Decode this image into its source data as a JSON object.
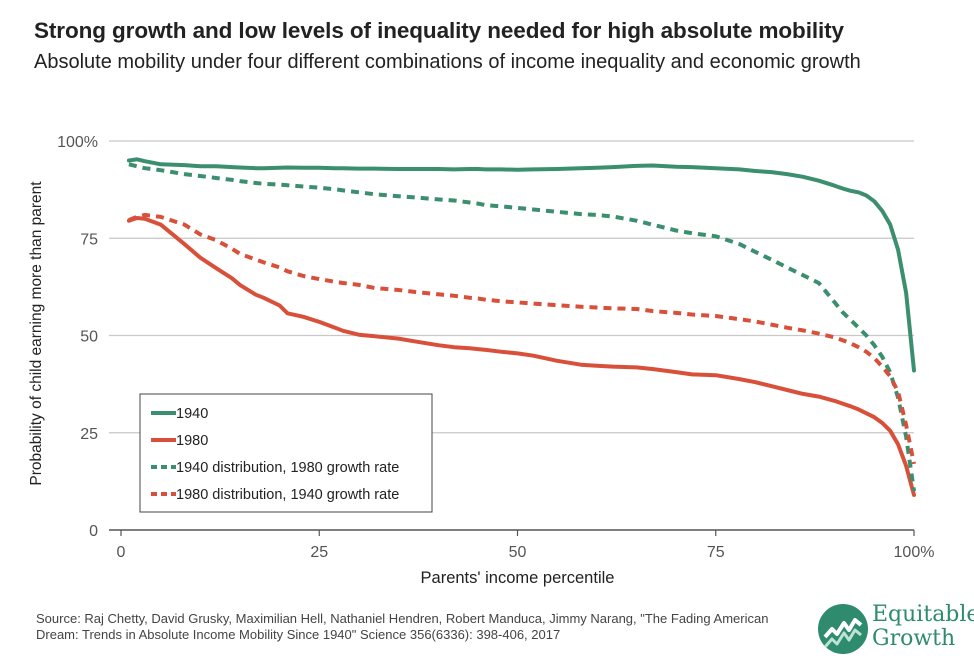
{
  "header": {
    "title": "Strong growth and low levels of inequality needed for high absolute mobility",
    "subtitle": "Absolute mobility under four different combinations of income inequality and economic growth"
  },
  "footer": {
    "source": "Source: Raj Chetty, David Grusky, Maximilian Hell, Nathaniel Hendren, Robert Manduca, Jimmy Narang, \"The Fading American Dream: Trends in Absolute Income Mobility Since 1940\" Science 356(6336): 398-406, 2017"
  },
  "logo": {
    "line1": "Equitable",
    "line2": "Growth"
  },
  "colors": {
    "green": "#3b8f6e",
    "red": "#d9503a",
    "grid": "#c8c8c8",
    "axis": "#555555"
  },
  "chart_data": {
    "type": "line",
    "title": "Strong growth and low levels of inequality needed for high absolute mobility",
    "subtitle": "Absolute mobility under four different combinations of income inequality and economic growth",
    "xlabel": "Parents' income percentile",
    "ylabel": "Probability of child earning more than parent",
    "xlim": [
      0,
      100
    ],
    "ylim": [
      0,
      100
    ],
    "x_ticks": [
      {
        "value": 0,
        "label": "0"
      },
      {
        "value": 25,
        "label": "25"
      },
      {
        "value": 50,
        "label": "50"
      },
      {
        "value": 75,
        "label": "75"
      },
      {
        "value": 100,
        "label": "100%"
      }
    ],
    "y_ticks": [
      {
        "value": 0,
        "label": "0"
      },
      {
        "value": 25,
        "label": "25"
      },
      {
        "value": 50,
        "label": "50"
      },
      {
        "value": 75,
        "label": "75"
      },
      {
        "value": 100,
        "label": "100%"
      }
    ],
    "grid": "horizontal",
    "legend_position": "bottom-left",
    "x": [
      1,
      2,
      3,
      5,
      8,
      10,
      12,
      14,
      15,
      17,
      18,
      20,
      21,
      23,
      25,
      27,
      28,
      30,
      32,
      35,
      37,
      40,
      42,
      44,
      45,
      46,
      48,
      50,
      52,
      55,
      58,
      60,
      62,
      65,
      67,
      70,
      72,
      75,
      78,
      80,
      82,
      84,
      86,
      88,
      90,
      91,
      92,
      93,
      94,
      95,
      96,
      97,
      98,
      99,
      100
    ],
    "series": [
      {
        "name": "1940",
        "style": "solid",
        "color": "#3b8f6e",
        "values": [
          95,
          95.3,
          94.8,
          94,
          93.8,
          93.5,
          93.5,
          93.3,
          93.2,
          93,
          93,
          93.1,
          93.2,
          93.1,
          93.1,
          93,
          93,
          92.9,
          92.9,
          92.8,
          92.8,
          92.8,
          92.7,
          92.8,
          92.8,
          92.7,
          92.7,
          92.6,
          92.7,
          92.8,
          93,
          93.1,
          93.3,
          93.6,
          93.7,
          93.4,
          93.3,
          93,
          92.7,
          92.3,
          92,
          91.5,
          90.8,
          89.8,
          88.5,
          87.8,
          87.2,
          86.8,
          86,
          84.5,
          82,
          78.5,
          72,
          61,
          41
        ]
      },
      {
        "name": "1980",
        "style": "solid",
        "color": "#d9503a",
        "values": [
          79.5,
          80.2,
          80,
          78.5,
          73.5,
          70,
          67.3,
          64.7,
          63,
          60.5,
          59.7,
          57.7,
          55.7,
          54.8,
          53.5,
          52,
          51.2,
          50.2,
          49.8,
          49.2,
          48.5,
          47.5,
          47,
          46.7,
          46.5,
          46.3,
          45.8,
          45.4,
          44.8,
          43.5,
          42.5,
          42.2,
          42,
          41.8,
          41.4,
          40.6,
          40,
          39.8,
          38.8,
          38,
          37,
          36,
          35,
          34.3,
          33.2,
          32.5,
          31.8,
          31,
          30,
          29,
          27.5,
          25.5,
          22,
          16.5,
          9
        ]
      },
      {
        "name": "1940 distribution, 1980 growth rate",
        "style": "dashed",
        "color": "#3b8f6e",
        "values": [
          94,
          93.5,
          93,
          92.5,
          91.5,
          91,
          90.5,
          90,
          89.7,
          89.2,
          89,
          88.8,
          88.6,
          88.3,
          88,
          87.6,
          87.3,
          86.8,
          86.3,
          85.8,
          85.5,
          85,
          84.7,
          84.2,
          83.9,
          83.5,
          83.2,
          82.8,
          82.4,
          81.8,
          81.2,
          81,
          80.6,
          79.5,
          78.5,
          77,
          76.3,
          75.5,
          73.5,
          71.5,
          69.5,
          67.5,
          65.5,
          63.5,
          58.5,
          56,
          54,
          52,
          50,
          47.5,
          44.5,
          40.5,
          34,
          24,
          10
        ]
      },
      {
        "name": "1980 distribution, 1940 growth rate",
        "style": "dashed",
        "color": "#d9503a",
        "values": [
          79.7,
          80.5,
          81,
          80.5,
          78.5,
          76,
          74.5,
          72.3,
          71,
          69.5,
          68.8,
          67.5,
          66.5,
          65.3,
          64.5,
          63.8,
          63.5,
          63,
          62.2,
          61.7,
          61.2,
          60.6,
          60.2,
          59.7,
          59.5,
          59.2,
          58.8,
          58.5,
          58.2,
          57.8,
          57.4,
          57.2,
          57,
          56.8,
          56.3,
          55.8,
          55.4,
          55,
          54.2,
          53.6,
          52.8,
          52,
          51.3,
          50.5,
          49.5,
          48.8,
          48,
          47,
          45.8,
          44.2,
          42,
          39.5,
          35.5,
          27,
          17
        ]
      }
    ]
  }
}
